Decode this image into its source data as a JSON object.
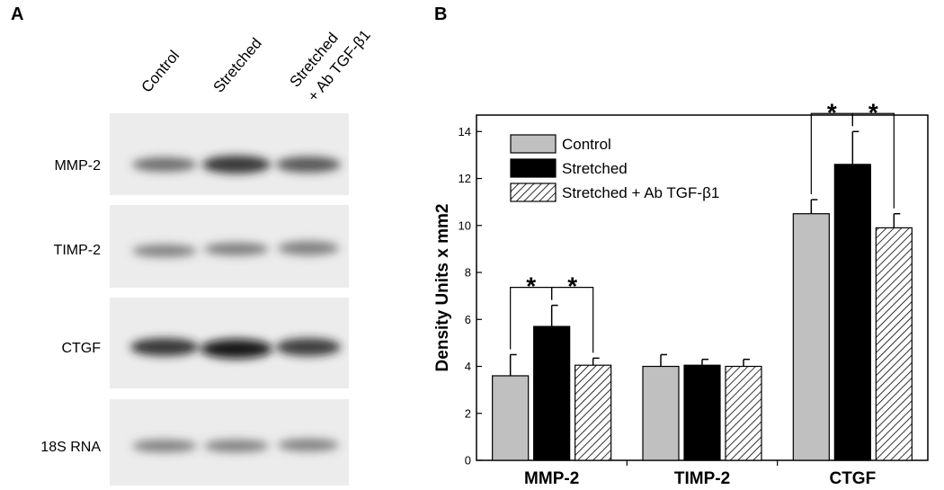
{
  "panel_labels": [
    "A",
    "B"
  ],
  "gel": {
    "lanes": [
      [
        "Control"
      ],
      [
        "Stretched"
      ],
      [
        "Stretched",
        "+ Ab TGF-β1"
      ]
    ],
    "rows": [
      "MMP-2",
      "TIMP-2",
      "CTGF",
      "18S RNA"
    ]
  },
  "chart_data": {
    "type": "bar",
    "y_label": "Density Units x mm2",
    "categories": [
      "MMP-2",
      "TIMP-2",
      "CTGF"
    ],
    "series": [
      {
        "name": "Control",
        "color": "#c0c0c0",
        "values": [
          3.6,
          4.0,
          10.5
        ],
        "errors": [
          0.9,
          0.5,
          0.6
        ]
      },
      {
        "name": "Stretched",
        "color": "#000000",
        "values": [
          5.7,
          4.05,
          12.6
        ],
        "errors": [
          0.9,
          0.25,
          1.4
        ]
      },
      {
        "name": "Stretched + Ab TGF-β1",
        "color": "#ffffff",
        "hatch": true,
        "values": [
          4.05,
          4.0,
          9.9
        ],
        "errors": [
          0.3,
          0.3,
          0.6
        ]
      }
    ],
    "annotations": [
      "*",
      "*",
      "*",
      "*"
    ],
    "ylim": [
      0,
      14.7
    ],
    "yticks": [
      0,
      2,
      4,
      6,
      8,
      10,
      12,
      14
    ],
    "grid": false,
    "legend": "upper-left"
  }
}
